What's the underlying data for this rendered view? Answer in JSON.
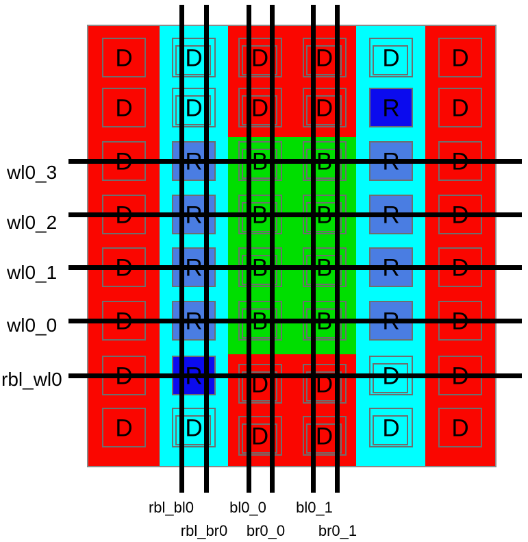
{
  "colors": {
    "background": "#ffffff",
    "dummy_red": "#fa0600",
    "replica_col_cyan": "#00ffff",
    "bitcell_green": "#00de00",
    "replica_cell_blue": "#4a7de2",
    "replica_cell_dark_blue": "#0b0bee",
    "cell_outline_gray": "#6e6e6e",
    "array_border_gray": "#8a8a8a",
    "wire_black": "#000000",
    "label_black": "#000000"
  },
  "wordlines": [
    {
      "label": "wl0_3"
    },
    {
      "label": "wl0_2"
    },
    {
      "label": "wl0_1"
    },
    {
      "label": "wl0_0"
    },
    {
      "label": "rbl_wl0"
    }
  ],
  "bitlines": [
    {
      "label": "rbl_bl0"
    },
    {
      "label": "rbl_br0"
    },
    {
      "label": "bl0_0"
    },
    {
      "label": "br0_0"
    },
    {
      "label": "bl0_1"
    },
    {
      "label": "br0_1"
    }
  ],
  "grid": {
    "rows": [
      {
        "cells": [
          {
            "letter": "D",
            "kind": "dummy-outer"
          },
          {
            "letter": "D",
            "kind": "dummy-cyan"
          },
          {
            "letter": "D",
            "kind": "dummy-red"
          },
          {
            "letter": "D",
            "kind": "dummy-red"
          },
          {
            "letter": "D",
            "kind": "dummy-cyan"
          },
          {
            "letter": "D",
            "kind": "dummy-outer"
          }
        ]
      },
      {
        "cells": [
          {
            "letter": "D",
            "kind": "dummy-outer"
          },
          {
            "letter": "D",
            "kind": "dummy-cyan"
          },
          {
            "letter": "D",
            "kind": "dummy-red"
          },
          {
            "letter": "D",
            "kind": "dummy-red"
          },
          {
            "letter": "R",
            "kind": "replica-dark"
          },
          {
            "letter": "D",
            "kind": "dummy-outer"
          }
        ]
      },
      {
        "cells": [
          {
            "letter": "D",
            "kind": "dummy-outer"
          },
          {
            "letter": "R",
            "kind": "replica"
          },
          {
            "letter": "B",
            "kind": "bitcell"
          },
          {
            "letter": "B",
            "kind": "bitcell"
          },
          {
            "letter": "R",
            "kind": "replica"
          },
          {
            "letter": "D",
            "kind": "dummy-outer"
          }
        ]
      },
      {
        "cells": [
          {
            "letter": "D",
            "kind": "dummy-outer"
          },
          {
            "letter": "R",
            "kind": "replica"
          },
          {
            "letter": "B",
            "kind": "bitcell"
          },
          {
            "letter": "B",
            "kind": "bitcell"
          },
          {
            "letter": "R",
            "kind": "replica"
          },
          {
            "letter": "D",
            "kind": "dummy-outer"
          }
        ]
      },
      {
        "cells": [
          {
            "letter": "D",
            "kind": "dummy-outer"
          },
          {
            "letter": "R",
            "kind": "replica"
          },
          {
            "letter": "B",
            "kind": "bitcell"
          },
          {
            "letter": "B",
            "kind": "bitcell"
          },
          {
            "letter": "R",
            "kind": "replica"
          },
          {
            "letter": "D",
            "kind": "dummy-outer"
          }
        ]
      },
      {
        "cells": [
          {
            "letter": "D",
            "kind": "dummy-outer"
          },
          {
            "letter": "R",
            "kind": "replica"
          },
          {
            "letter": "B",
            "kind": "bitcell"
          },
          {
            "letter": "B",
            "kind": "bitcell"
          },
          {
            "letter": "R",
            "kind": "replica"
          },
          {
            "letter": "D",
            "kind": "dummy-outer"
          }
        ]
      },
      {
        "cells": [
          {
            "letter": "D",
            "kind": "dummy-outer"
          },
          {
            "letter": "R",
            "kind": "replica-dark"
          },
          {
            "letter": "D",
            "kind": "dummy-red"
          },
          {
            "letter": "D",
            "kind": "dummy-red"
          },
          {
            "letter": "D",
            "kind": "dummy-cyan"
          },
          {
            "letter": "D",
            "kind": "dummy-outer"
          }
        ]
      },
      {
        "cells": [
          {
            "letter": "D",
            "kind": "dummy-outer"
          },
          {
            "letter": "D",
            "kind": "dummy-cyan"
          },
          {
            "letter": "D",
            "kind": "dummy-red"
          },
          {
            "letter": "D",
            "kind": "dummy-red"
          },
          {
            "letter": "D",
            "kind": "dummy-cyan"
          },
          {
            "letter": "D",
            "kind": "dummy-outer"
          }
        ]
      }
    ]
  }
}
